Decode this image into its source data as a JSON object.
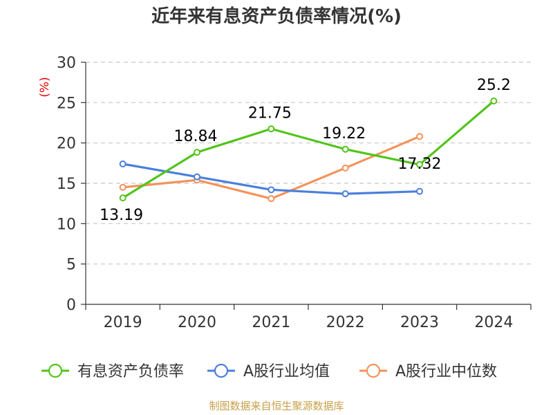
{
  "chart_data": {
    "type": "line",
    "title": "近年来有息资产负债率情况(%)",
    "ylabel": "(%)",
    "xlabel": "",
    "categories": [
      "2019",
      "2020",
      "2021",
      "2022",
      "2023",
      "2024"
    ],
    "ylim": [
      0,
      30
    ],
    "yticks": [
      0,
      5,
      10,
      15,
      20,
      25,
      30
    ],
    "grid": true,
    "legend_position": "bottom",
    "series": [
      {
        "name": "有息资产负债率",
        "color": "#52c41a",
        "values": [
          13.19,
          18.84,
          21.75,
          19.22,
          17.32,
          25.2
        ],
        "labels": [
          "13.19",
          "18.84",
          "21.75",
          "19.22",
          "17.32",
          "25.2"
        ]
      },
      {
        "name": "A股行业均值",
        "color": "#4a7fdc",
        "values": [
          17.4,
          15.8,
          14.2,
          13.7,
          14.0,
          null
        ]
      },
      {
        "name": "A股行业中位数",
        "color": "#f4925a",
        "values": [
          14.5,
          15.4,
          13.1,
          16.9,
          20.8,
          null
        ]
      }
    ]
  },
  "footer": "制图数据来自恒生聚源数据库"
}
